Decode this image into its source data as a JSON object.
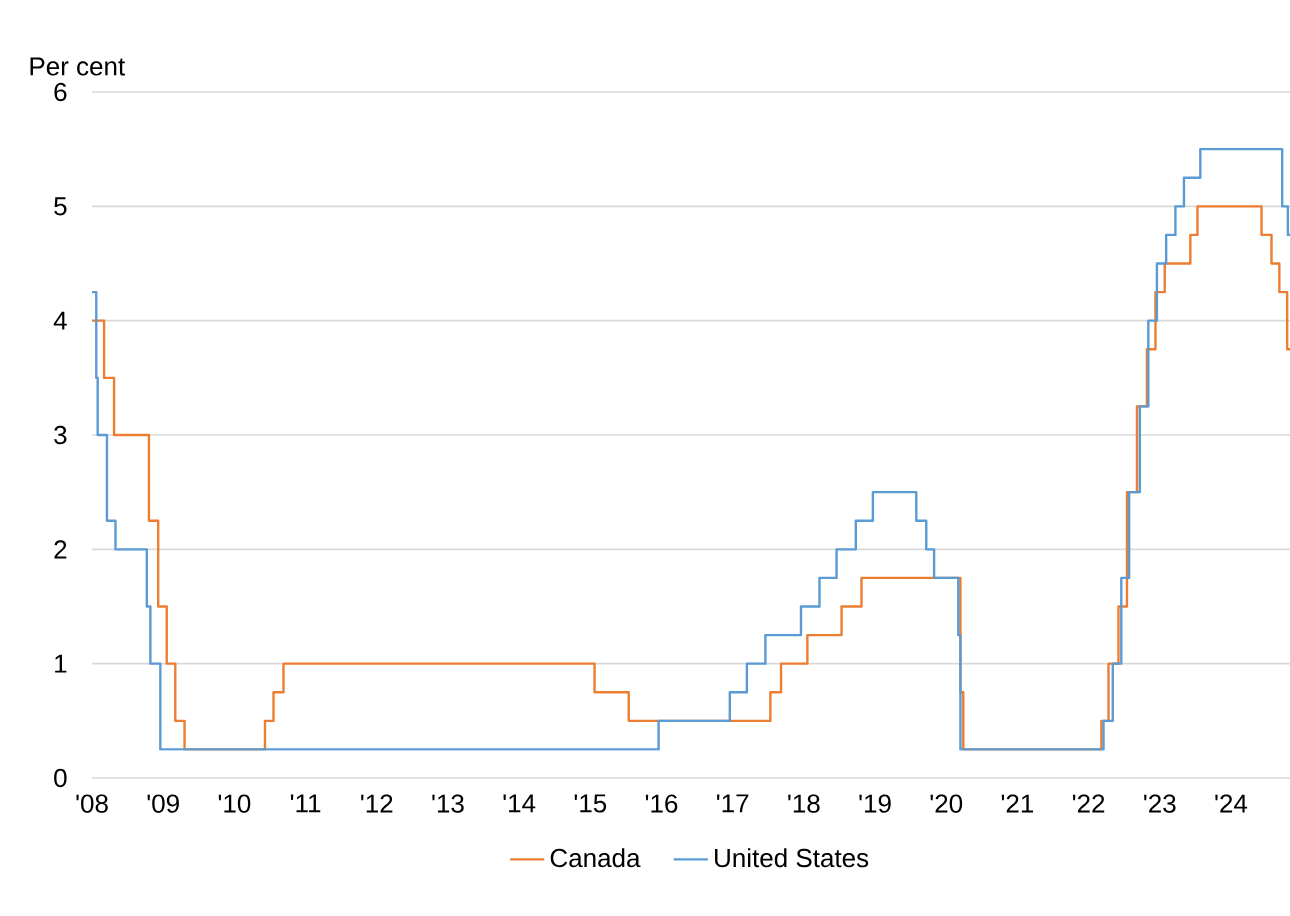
{
  "chart_data": {
    "type": "step",
    "ylabel": "Per cent",
    "xlim": [
      2008,
      2024.83
    ],
    "ylim": [
      0,
      6
    ],
    "yticks": [
      0,
      1,
      2,
      3,
      4,
      5,
      6
    ],
    "xticks": [
      {
        "value": 2008,
        "label": "'08"
      },
      {
        "value": 2009,
        "label": "'09"
      },
      {
        "value": 2010,
        "label": "'10"
      },
      {
        "value": 2011,
        "label": "'11"
      },
      {
        "value": 2012,
        "label": "'12"
      },
      {
        "value": 2013,
        "label": "'13"
      },
      {
        "value": 2014,
        "label": "'14"
      },
      {
        "value": 2015,
        "label": "'15"
      },
      {
        "value": 2016,
        "label": "'16"
      },
      {
        "value": 2017,
        "label": "'17"
      },
      {
        "value": 2018,
        "label": "'18"
      },
      {
        "value": 2019,
        "label": "'19"
      },
      {
        "value": 2020,
        "label": "'20"
      },
      {
        "value": 2021,
        "label": "'21"
      },
      {
        "value": 2022,
        "label": "'22"
      },
      {
        "value": 2023,
        "label": "'23"
      },
      {
        "value": 2024,
        "label": "'24"
      }
    ],
    "grid": "y",
    "legend": "bottom",
    "marker": "none",
    "line_style": "solid",
    "series": [
      {
        "name": "Canada",
        "color": "#ed7d31",
        "x": [
          2008.0,
          2008.17,
          2008.31,
          2008.8,
          2008.93,
          2009.05,
          2009.17,
          2009.3,
          2010.43,
          2010.55,
          2010.69,
          2015.06,
          2015.54,
          2017.53,
          2017.68,
          2018.05,
          2018.53,
          2018.81,
          2020.2,
          2020.24,
          2022.18,
          2022.28,
          2022.42,
          2022.54,
          2022.68,
          2022.82,
          2022.94,
          2023.07,
          2023.43,
          2023.53,
          2024.43,
          2024.57,
          2024.68,
          2024.79,
          2024.83
        ],
        "values": [
          4.0,
          3.5,
          3.0,
          2.25,
          1.5,
          1.0,
          0.5,
          0.25,
          0.5,
          0.75,
          1.0,
          0.75,
          0.5,
          0.75,
          1.0,
          1.25,
          1.5,
          1.75,
          0.75,
          0.25,
          0.5,
          1.0,
          1.5,
          2.5,
          3.25,
          3.75,
          4.25,
          4.5,
          4.75,
          5.0,
          4.75,
          4.5,
          4.25,
          3.75,
          3.75
        ]
      },
      {
        "name": "United States",
        "color": "#5b9bd5",
        "x": [
          2008.0,
          2008.06,
          2008.08,
          2008.21,
          2008.33,
          2008.77,
          2008.82,
          2008.96,
          2015.96,
          2016.96,
          2017.2,
          2017.46,
          2017.96,
          2018.22,
          2018.46,
          2018.73,
          2018.97,
          2019.58,
          2019.72,
          2019.83,
          2020.17,
          2020.2,
          2022.21,
          2022.34,
          2022.46,
          2022.57,
          2022.72,
          2022.84,
          2022.96,
          2023.09,
          2023.22,
          2023.34,
          2023.57,
          2024.72,
          2024.8,
          2024.83
        ],
        "values": [
          4.25,
          3.5,
          3.0,
          2.25,
          2.0,
          1.5,
          1.0,
          0.25,
          0.5,
          0.75,
          1.0,
          1.25,
          1.5,
          1.75,
          2.0,
          2.25,
          2.5,
          2.25,
          2.0,
          1.75,
          1.25,
          0.25,
          0.5,
          1.0,
          1.75,
          2.5,
          3.25,
          4.0,
          4.5,
          4.75,
          5.0,
          5.25,
          5.5,
          5.0,
          4.75,
          4.75
        ]
      }
    ]
  }
}
